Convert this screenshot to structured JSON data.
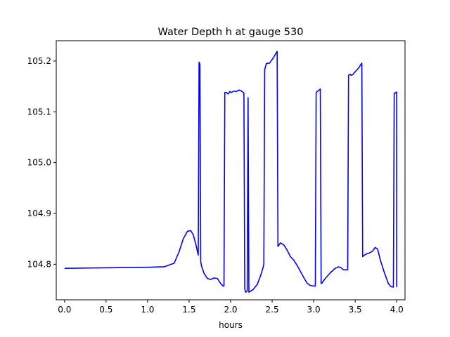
{
  "chart_data": {
    "type": "line",
    "title": "Water Depth h at gauge 530",
    "xlabel": "hours",
    "ylabel": "",
    "xlim": [
      -0.1,
      4.1
    ],
    "ylim": [
      104.73,
      105.24
    ],
    "xticks": [
      0.0,
      0.5,
      1.0,
      1.5,
      2.0,
      2.5,
      3.0,
      3.5,
      4.0
    ],
    "xtick_labels": [
      "0.0",
      "0.5",
      "1.0",
      "1.5",
      "2.0",
      "2.5",
      "3.0",
      "3.5",
      "4.0"
    ],
    "yticks": [
      104.8,
      104.9,
      105.0,
      105.1,
      105.2
    ],
    "ytick_labels": [
      "104.8",
      "104.9",
      "105.0",
      "105.1",
      "105.2"
    ],
    "grid": false,
    "legend": "none",
    "series": [
      {
        "color": "#0000ff",
        "x": [
          0.0,
          0.5,
          1.0,
          1.2,
          1.32,
          1.38,
          1.43,
          1.48,
          1.52,
          1.55,
          1.58,
          1.61,
          1.62,
          1.63,
          1.64,
          1.65,
          1.68,
          1.72,
          1.76,
          1.8,
          1.84,
          1.88,
          1.91,
          1.92,
          1.93,
          1.95,
          1.97,
          1.99,
          2.01,
          2.04,
          2.07,
          2.1,
          2.13,
          2.16,
          2.17,
          2.18,
          2.2,
          2.21,
          2.22,
          2.23,
          2.27,
          2.32,
          2.36,
          2.39,
          2.4,
          2.41,
          2.43,
          2.47,
          2.52,
          2.56,
          2.57,
          2.6,
          2.64,
          2.68,
          2.72,
          2.76,
          2.8,
          2.84,
          2.88,
          2.92,
          2.96,
          3.01,
          3.02,
          3.03,
          3.05,
          3.06,
          3.08,
          3.09,
          3.1,
          3.14,
          3.2,
          3.26,
          3.3,
          3.33,
          3.36,
          3.39,
          3.41,
          3.42,
          3.44,
          3.45,
          3.47,
          3.5,
          3.54,
          3.58,
          3.59,
          3.63,
          3.67,
          3.71,
          3.74,
          3.77,
          3.8,
          3.85,
          3.9,
          3.93,
          3.96,
          3.97,
          3.98,
          4.0,
          4.0
        ],
        "y": [
          104.792,
          104.793,
          104.794,
          104.795,
          104.802,
          104.825,
          104.85,
          104.865,
          104.866,
          104.858,
          104.84,
          104.818,
          105.198,
          105.193,
          104.805,
          104.796,
          104.782,
          104.772,
          104.77,
          104.773,
          104.772,
          104.762,
          104.757,
          104.757,
          105.138,
          105.138,
          105.135,
          105.14,
          105.138,
          105.141,
          105.14,
          105.143,
          105.141,
          105.137,
          104.752,
          104.745,
          104.747,
          105.128,
          104.745,
          104.746,
          104.75,
          104.76,
          104.777,
          104.793,
          104.8,
          105.183,
          105.195,
          105.196,
          105.208,
          105.219,
          104.835,
          104.842,
          104.838,
          104.828,
          104.815,
          104.808,
          104.798,
          104.786,
          104.774,
          104.763,
          104.758,
          104.757,
          104.757,
          105.138,
          105.141,
          105.142,
          105.145,
          104.762,
          104.763,
          104.772,
          104.783,
          104.792,
          104.795,
          104.793,
          104.789,
          104.789,
          104.789,
          105.172,
          105.174,
          105.172,
          105.173,
          105.179,
          105.186,
          105.196,
          104.815,
          104.82,
          104.822,
          104.826,
          104.833,
          104.83,
          104.81,
          104.784,
          104.762,
          104.756,
          104.755,
          105.137,
          105.137,
          105.139,
          104.755
        ]
      }
    ]
  }
}
